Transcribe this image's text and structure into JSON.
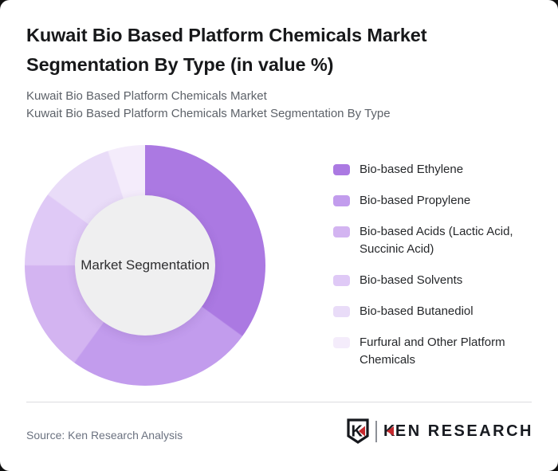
{
  "header": {
    "title_line1": "Kuwait Bio Based Platform Chemicals Market",
    "title_line2": "Segmentation By Type (in value %)",
    "subtitle_line1": "Kuwait Bio Based Platform Chemicals Market",
    "subtitle_line2": "Kuwait Bio Based Platform Chemicals Market Segmentation By Type"
  },
  "chart_data": {
    "type": "pie",
    "subtype": "donut",
    "title": "Kuwait Bio Based Platform Chemicals Market Segmentation By Type (in value %)",
    "center_label": "Market Segmentation",
    "unit": "percent",
    "labels": [
      "Bio-based Ethylene",
      "Bio-based Propylene",
      "Bio-based Acids (Lactic Acid, Succinic Acid)",
      "Bio-based Solvents",
      "Bio-based Butanediol",
      "Furfural and Other Platform Chemicals"
    ],
    "values": [
      35,
      25,
      15,
      10,
      10,
      5
    ],
    "colors": [
      "#ab79e2",
      "#c29ced",
      "#d3b4f1",
      "#dfc9f6",
      "#e9dcf8",
      "#f4ecfb"
    ],
    "start_angle_deg": 0,
    "direction": "clockwise",
    "legend_position": "right",
    "inner_radius_ratio": 0.58,
    "center_bg": "#efeff0"
  },
  "footer": {
    "source": "Source: Ken Research Analysis",
    "logo": {
      "shield_letter": "K",
      "text_k": "K",
      "text_rest": "EN RESEARCH",
      "red": "#c5292e",
      "dark": "#171a20"
    }
  }
}
